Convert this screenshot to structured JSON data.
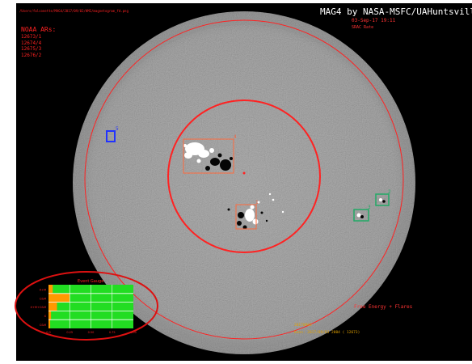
{
  "header": {
    "path": "/Users/falconette/MAG4/2017/09/02/HMI/magnetogram_fd.png",
    "title": "MAG4 by NASA-MSFC/UAHuntsville",
    "date": "03-Sep-17 19:11",
    "subtitle": "SRAC Rate"
  },
  "noaa": {
    "title": "NOAA ARs:",
    "regions": [
      "12673/1",
      "12674/4",
      "12675/3",
      "12676/2"
    ]
  },
  "regions": [
    {
      "tag": "5",
      "color": "#2233ff"
    },
    {
      "tag": "4",
      "color": "#ee6644"
    },
    {
      "tag": "1",
      "color": "#ee6644"
    },
    {
      "tag": "3",
      "color": "#22aa66"
    },
    {
      "tag": "2",
      "color": "#22aa66"
    }
  ],
  "gauge": {
    "title": "Event Gauge",
    "rows": [
      "X+M",
      "C&M",
      "X+M+C&M",
      "X",
      "C&M"
    ],
    "ticks": [
      "0.0",
      "0.25",
      "0.50",
      "0.75",
      "1.00"
    ],
    "levels": [
      0.05,
      0.25,
      0.1,
      0.03,
      0.02
    ],
    "colors": {
      "low": "#ff9900",
      "high": "#22dd22"
    }
  },
  "legend": {
    "free_energy": "Free Energy + Flares"
  },
  "footer": {
    "line1": "20170903",
    "line2": "Keen: 2017/09/03 2004   (   12673)"
  }
}
